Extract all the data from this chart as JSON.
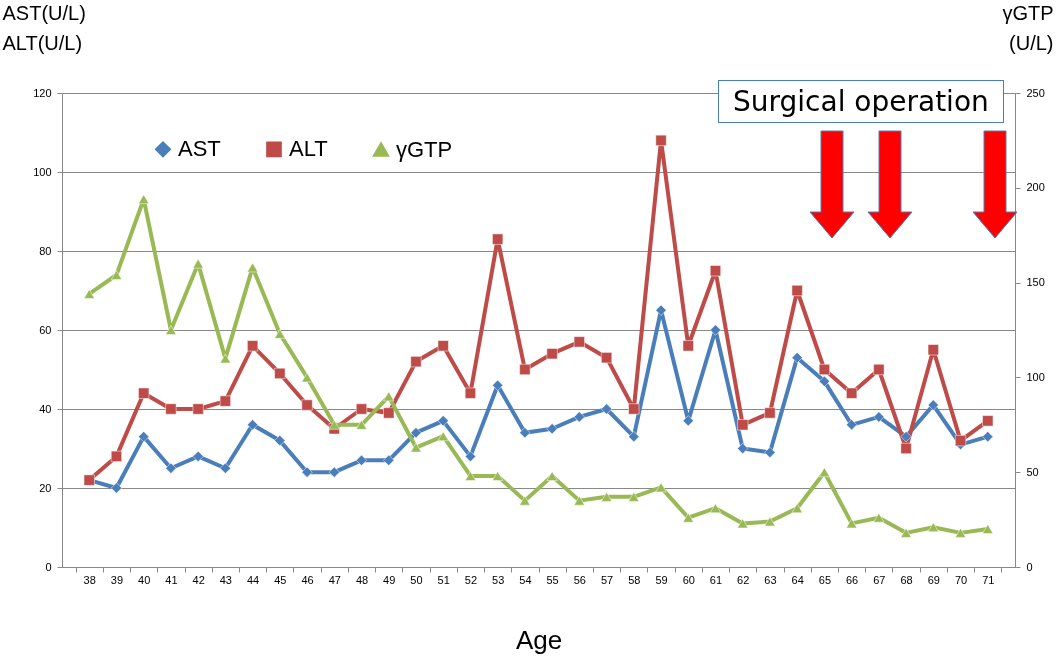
{
  "chart_data": {
    "type": "line",
    "xlabel": "Age",
    "ylabel": "AST(U/L)\nALT(U/L)",
    "y2label": "γGTP\n(U/L)",
    "categories": [
      "38",
      "39",
      "40",
      "41",
      "42",
      "43",
      "44",
      "45",
      "46",
      "47",
      "48",
      "49",
      "50",
      "51",
      "52",
      "53",
      "54",
      "55",
      "56",
      "57",
      "58",
      "59",
      "60",
      "61",
      "62",
      "63",
      "64",
      "65",
      "66",
      "67",
      "68",
      "69",
      "70",
      "71"
    ],
    "series": [
      {
        "name": "AST",
        "color": "#4a7ebb",
        "marker": "diamond",
        "values": [
          22,
          20,
          33,
          25,
          28,
          25,
          36,
          32,
          24,
          24,
          27,
          27,
          34,
          37,
          28,
          46,
          34,
          35,
          38,
          40,
          33,
          65,
          37,
          60,
          30,
          29,
          53,
          47,
          36,
          38,
          33,
          41,
          31,
          33
        ]
      },
      {
        "name": "ALT",
        "color": "#be4b48",
        "marker": "square",
        "values": [
          22,
          28,
          44,
          40,
          40,
          42,
          56,
          49,
          41,
          35,
          40,
          39,
          52,
          56,
          44,
          83,
          50,
          54,
          57,
          53,
          40,
          108,
          56,
          75,
          36,
          39,
          70,
          50,
          44,
          50,
          30,
          55,
          32,
          37
        ]
      },
      {
        "name": "γGTP",
        "color": "#98b954",
        "marker": "triangle",
        "axis": "y2",
        "values": [
          144,
          154,
          194,
          125,
          160,
          110,
          158,
          123,
          100,
          75,
          75,
          90,
          63,
          69,
          48,
          48,
          35,
          48,
          35,
          37,
          37,
          42,
          26,
          31,
          23,
          24,
          31,
          50,
          23,
          26,
          18,
          21,
          18,
          20
        ]
      }
    ],
    "ylim": [
      0,
      120
    ],
    "yticks": [
      0,
      20,
      40,
      60,
      80,
      100,
      120
    ],
    "y2lim": [
      0,
      250
    ],
    "y2ticks": [
      0,
      50,
      100,
      150,
      200,
      250
    ],
    "grid": "y",
    "legend": "top left",
    "annotations": [
      "Surgical operation"
    ]
  }
}
